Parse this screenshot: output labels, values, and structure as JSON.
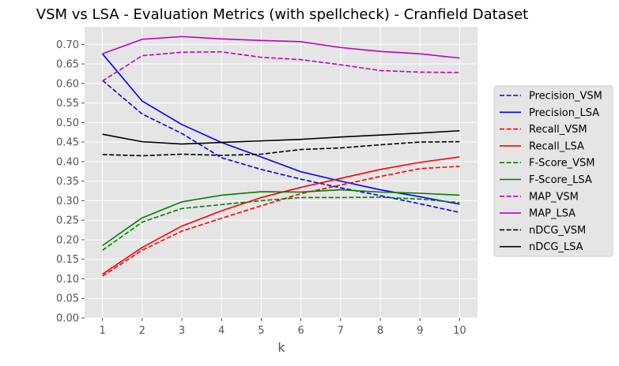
{
  "chart_data": {
    "type": "line",
    "title": "VSM vs LSA - Evaluation Metrics (with spellcheck) - Cranfield Dataset",
    "xlabel": "k",
    "ylabel": "",
    "x": [
      1,
      2,
      3,
      4,
      5,
      6,
      7,
      8,
      9,
      10
    ],
    "xlim": [
      0.55,
      10.45
    ],
    "ylim": [
      0.0,
      0.745
    ],
    "yticks": [
      0.0,
      0.05,
      0.1,
      0.15,
      0.2,
      0.25,
      0.3,
      0.35,
      0.4,
      0.45,
      0.5,
      0.55,
      0.6,
      0.65,
      0.7
    ],
    "ytick_labels": [
      "0.00",
      "0.05",
      "0.10",
      "0.15",
      "0.20",
      "0.25",
      "0.30",
      "0.35",
      "0.40",
      "0.45",
      "0.50",
      "0.55",
      "0.60",
      "0.65",
      "0.70"
    ],
    "xtick_labels": [
      "1",
      "2",
      "3",
      "4",
      "5",
      "6",
      "7",
      "8",
      "9",
      "10"
    ],
    "grid": true,
    "legend_position": "outside-right",
    "series": [
      {
        "name": "Precision_VSM",
        "color": "#0000ff",
        "dash": "dashed",
        "values": [
          0.608,
          0.522,
          0.472,
          0.41,
          0.38,
          0.355,
          0.333,
          0.313,
          0.292,
          0.27
        ]
      },
      {
        "name": "Precision_LSA",
        "color": "#0000ff",
        "dash": "solid",
        "values": [
          0.676,
          0.555,
          0.495,
          0.449,
          0.412,
          0.374,
          0.35,
          0.328,
          0.31,
          0.291
        ]
      },
      {
        "name": "Recall_VSM",
        "color": "#ff0000",
        "dash": "dashed",
        "values": [
          0.107,
          0.173,
          0.222,
          0.255,
          0.287,
          0.318,
          0.34,
          0.362,
          0.382,
          0.388
        ]
      },
      {
        "name": "Recall_LSA",
        "color": "#ff0000",
        "dash": "solid",
        "values": [
          0.112,
          0.18,
          0.235,
          0.274,
          0.308,
          0.334,
          0.357,
          0.38,
          0.398,
          0.412
        ]
      },
      {
        "name": "F-Score_VSM",
        "color": "#008000",
        "dash": "dashed",
        "values": [
          0.173,
          0.245,
          0.28,
          0.29,
          0.3,
          0.308,
          0.308,
          0.309,
          0.304,
          0.295
        ]
      },
      {
        "name": "F-Score_LSA",
        "color": "#008000",
        "dash": "solid",
        "values": [
          0.185,
          0.256,
          0.297,
          0.314,
          0.323,
          0.322,
          0.328,
          0.322,
          0.319,
          0.314
        ]
      },
      {
        "name": "MAP_VSM",
        "color": "#bf00bf",
        "dash": "dashed",
        "values": [
          0.606,
          0.671,
          0.68,
          0.681,
          0.667,
          0.661,
          0.648,
          0.633,
          0.629,
          0.628
        ]
      },
      {
        "name": "MAP_LSA",
        "color": "#bf00bf",
        "dash": "solid",
        "values": [
          0.676,
          0.713,
          0.72,
          0.714,
          0.71,
          0.707,
          0.692,
          0.682,
          0.676,
          0.665
        ]
      },
      {
        "name": "nDCG_VSM",
        "color": "#000000",
        "dash": "dashed",
        "values": [
          0.418,
          0.415,
          0.419,
          0.416,
          0.419,
          0.431,
          0.435,
          0.443,
          0.45,
          0.451
        ]
      },
      {
        "name": "nDCG_LSA",
        "color": "#000000",
        "dash": "solid",
        "values": [
          0.47,
          0.451,
          0.445,
          0.449,
          0.453,
          0.457,
          0.463,
          0.468,
          0.473,
          0.479
        ]
      }
    ]
  }
}
